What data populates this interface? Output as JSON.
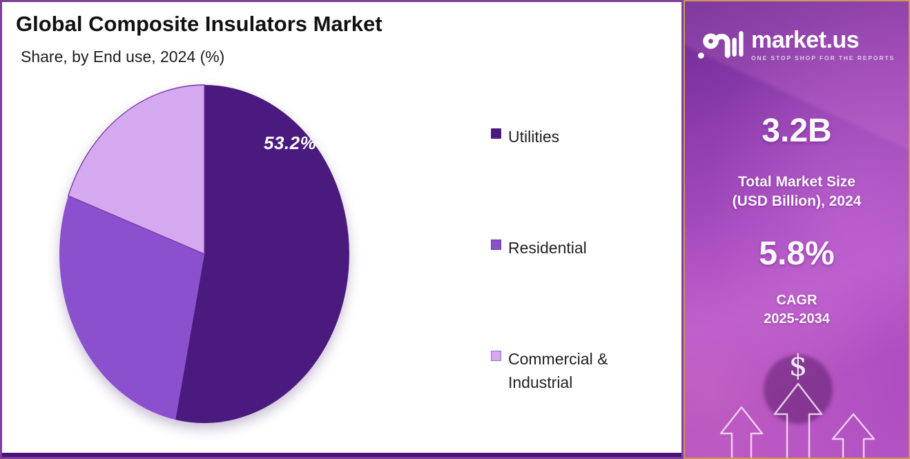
{
  "header": {
    "title": "Global Composite Insulators Market",
    "subtitle": "Share, by End use, 2024 (%)"
  },
  "chart_data": {
    "type": "pie",
    "title": "Global Composite Insulators Market",
    "subtitle": "Share, by End use, 2024 (%)",
    "unit": "%",
    "start_angle_deg": 0,
    "direction": "clockwise",
    "legend_position": "right",
    "categories": [
      "Utilities",
      "Residential",
      "Commercial & Industrial"
    ],
    "values": [
      53.2,
      27.4,
      19.4
    ],
    "estimated": [
      false,
      true,
      true
    ],
    "value_labels": [
      "53.2%",
      "",
      ""
    ],
    "colors": [
      "#4B1A7E",
      "#8B50CE",
      "#D5A9EF"
    ]
  },
  "legend": {
    "items": [
      {
        "label": "Utilities",
        "color": "#4B1A7E"
      },
      {
        "label": "Residential",
        "color": "#8B50CE"
      },
      {
        "label": "Commercial &\nIndustrial",
        "color": "#D5A9EF"
      }
    ]
  },
  "sidebar": {
    "logo": {
      "brand": "market.us",
      "tagline": "ONE STOP SHOP FOR THE REPORTS"
    },
    "stats": [
      {
        "value": "3.2B",
        "label_line1": "Total Market Size",
        "label_line2": "(USD Billion), 2024"
      },
      {
        "value": "5.8%",
        "label_line1": "CAGR",
        "label_line2": "2025-2034"
      }
    ],
    "icons": {
      "dollar": "$"
    },
    "colors": {
      "border": "#D2955C",
      "bg_top": "#6A2A92",
      "bg_mid": "#A64CC0",
      "bg_bottom": "#B352C4"
    }
  },
  "frame": {
    "chart_border": "#7C3F9B",
    "bottom_strip": "#4A1277",
    "pie_rim_stroke": "#7A3AA8"
  }
}
